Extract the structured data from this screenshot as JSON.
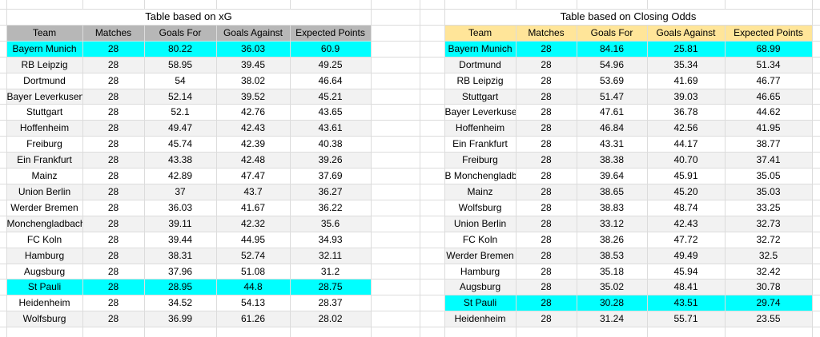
{
  "colors": {
    "highlight": "#00ffff",
    "stripe": "#f2f2f2",
    "gridline": "#dcdcdc",
    "header_xg": "#b7b7b7",
    "header_odds": "#ffe599",
    "text": "#000000"
  },
  "tables": {
    "xg": {
      "title": "Table based on xG",
      "columns": [
        "Team",
        "Matches",
        "Goals For",
        "Goals Against",
        "Expected Points"
      ],
      "rows": [
        {
          "team": "Bayern Munich",
          "matches": "28",
          "goals_for": "80.22",
          "goals_against": "36.03",
          "expected_points": "60.9",
          "highlight": true
        },
        {
          "team": "RB Leipzig",
          "matches": "28",
          "goals_for": "58.95",
          "goals_against": "39.45",
          "expected_points": "49.25",
          "highlight": false
        },
        {
          "team": "Dortmund",
          "matches": "28",
          "goals_for": "54",
          "goals_against": "38.02",
          "expected_points": "46.64",
          "highlight": false
        },
        {
          "team": "Bayer Leverkusen",
          "matches": "28",
          "goals_for": "52.14",
          "goals_against": "39.52",
          "expected_points": "45.21",
          "highlight": false
        },
        {
          "team": "Stuttgart",
          "matches": "28",
          "goals_for": "52.1",
          "goals_against": "42.76",
          "expected_points": "43.65",
          "highlight": false
        },
        {
          "team": "Hoffenheim",
          "matches": "28",
          "goals_for": "49.47",
          "goals_against": "42.43",
          "expected_points": "43.61",
          "highlight": false
        },
        {
          "team": "Freiburg",
          "matches": "28",
          "goals_for": "45.74",
          "goals_against": "42.39",
          "expected_points": "40.38",
          "highlight": false
        },
        {
          "team": "Ein Frankfurt",
          "matches": "28",
          "goals_for": "43.38",
          "goals_against": "42.48",
          "expected_points": "39.26",
          "highlight": false
        },
        {
          "team": "Mainz",
          "matches": "28",
          "goals_for": "42.89",
          "goals_against": "47.47",
          "expected_points": "37.69",
          "highlight": false
        },
        {
          "team": "Union Berlin",
          "matches": "28",
          "goals_for": "37",
          "goals_against": "43.7",
          "expected_points": "36.27",
          "highlight": false
        },
        {
          "team": "Werder Bremen",
          "matches": "28",
          "goals_for": "36.03",
          "goals_against": "41.67",
          "expected_points": "36.22",
          "highlight": false
        },
        {
          "team": "Monchengladbach",
          "matches": "28",
          "goals_for": "39.11",
          "goals_against": "42.32",
          "expected_points": "35.6",
          "highlight": false
        },
        {
          "team": "FC Koln",
          "matches": "28",
          "goals_for": "39.44",
          "goals_against": "44.95",
          "expected_points": "34.93",
          "highlight": false
        },
        {
          "team": "Hamburg",
          "matches": "28",
          "goals_for": "38.31",
          "goals_against": "52.74",
          "expected_points": "32.11",
          "highlight": false
        },
        {
          "team": "Augsburg",
          "matches": "28",
          "goals_for": "37.96",
          "goals_against": "51.08",
          "expected_points": "31.2",
          "highlight": false
        },
        {
          "team": "St Pauli",
          "matches": "28",
          "goals_for": "28.95",
          "goals_against": "44.8",
          "expected_points": "28.75",
          "highlight": true
        },
        {
          "team": "Heidenheim",
          "matches": "28",
          "goals_for": "34.52",
          "goals_against": "54.13",
          "expected_points": "28.37",
          "highlight": false
        },
        {
          "team": "Wolfsburg",
          "matches": "28",
          "goals_for": "36.99",
          "goals_against": "61.26",
          "expected_points": "28.02",
          "highlight": false
        }
      ]
    },
    "odds": {
      "title": "Table based on Closing Odds",
      "columns": [
        "Team",
        "Matches",
        "Goals For",
        "Goals Against",
        "Expected Points"
      ],
      "rows": [
        {
          "team": "Bayern Munich",
          "matches": "28",
          "goals_for": "84.16",
          "goals_against": "25.81",
          "expected_points": "68.99",
          "highlight": true
        },
        {
          "team": "Dortmund",
          "matches": "28",
          "goals_for": "54.96",
          "goals_against": "35.34",
          "expected_points": "51.34",
          "highlight": false
        },
        {
          "team": "RB Leipzig",
          "matches": "28",
          "goals_for": "53.69",
          "goals_against": "41.69",
          "expected_points": "46.77",
          "highlight": false
        },
        {
          "team": "Stuttgart",
          "matches": "28",
          "goals_for": "51.47",
          "goals_against": "39.03",
          "expected_points": "46.65",
          "highlight": false
        },
        {
          "team": "Bayer Leverkusen",
          "matches": "28",
          "goals_for": "47.61",
          "goals_against": "36.78",
          "expected_points": "44.62",
          "highlight": false
        },
        {
          "team": "Hoffenheim",
          "matches": "28",
          "goals_for": "46.84",
          "goals_against": "42.56",
          "expected_points": "41.95",
          "highlight": false
        },
        {
          "team": "Ein Frankfurt",
          "matches": "28",
          "goals_for": "43.31",
          "goals_against": "44.17",
          "expected_points": "38.77",
          "highlight": false
        },
        {
          "team": "Freiburg",
          "matches": "28",
          "goals_for": "38.38",
          "goals_against": "40.70",
          "expected_points": "37.41",
          "highlight": false
        },
        {
          "team": "B Monchengladbach",
          "matches": "28",
          "goals_for": "39.64",
          "goals_against": "45.91",
          "expected_points": "35.05",
          "highlight": false
        },
        {
          "team": "Mainz",
          "matches": "28",
          "goals_for": "38.65",
          "goals_against": "45.20",
          "expected_points": "35.03",
          "highlight": false
        },
        {
          "team": "Wolfsburg",
          "matches": "28",
          "goals_for": "38.83",
          "goals_against": "48.74",
          "expected_points": "33.25",
          "highlight": false
        },
        {
          "team": "Union Berlin",
          "matches": "28",
          "goals_for": "33.12",
          "goals_against": "42.43",
          "expected_points": "32.73",
          "highlight": false
        },
        {
          "team": "FC Koln",
          "matches": "28",
          "goals_for": "38.26",
          "goals_against": "47.72",
          "expected_points": "32.72",
          "highlight": false
        },
        {
          "team": "Werder Bremen",
          "matches": "28",
          "goals_for": "38.53",
          "goals_against": "49.49",
          "expected_points": "32.5",
          "highlight": false
        },
        {
          "team": "Hamburg",
          "matches": "28",
          "goals_for": "35.18",
          "goals_against": "45.94",
          "expected_points": "32.42",
          "highlight": false
        },
        {
          "team": "Augsburg",
          "matches": "28",
          "goals_for": "35.02",
          "goals_against": "48.41",
          "expected_points": "30.78",
          "highlight": false
        },
        {
          "team": "St Pauli",
          "matches": "28",
          "goals_for": "30.28",
          "goals_against": "43.51",
          "expected_points": "29.74",
          "highlight": true
        },
        {
          "team": "Heidenheim",
          "matches": "28",
          "goals_for": "31.24",
          "goals_against": "55.71",
          "expected_points": "23.55",
          "highlight": false
        }
      ]
    }
  }
}
